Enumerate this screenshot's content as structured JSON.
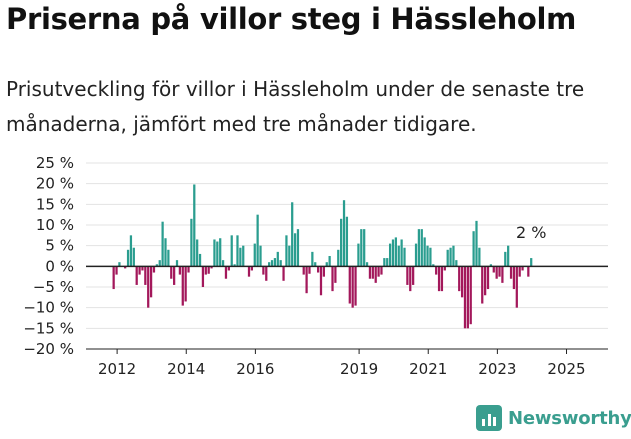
{
  "title": "Priserna på villor steg i Hässleholm",
  "subtitle": "Prisutveckling för villor i Hässleholm under de senaste tre månaderna, jämfört med tre månader tidigare.",
  "brand": {
    "name": "Newsworthy",
    "icon": "newsworthy-logo-icon",
    "color": "#3a9e8f"
  },
  "colors": {
    "positive": "#2a9d8f",
    "negative": "#a3185b",
    "grid": "#e3e3e3",
    "axis": "#222222"
  },
  "chart_data": {
    "type": "bar",
    "ylim": [
      -20,
      25
    ],
    "yticks": [
      -20,
      -15,
      -10,
      -5,
      0,
      5,
      10,
      15,
      20,
      25
    ],
    "ytick_labels": [
      "−20 %",
      "−15 %",
      "−10 %",
      "−5 %",
      "0 %",
      "5 %",
      "10 %",
      "15 %",
      "20 %",
      "25 %"
    ],
    "xticks": [
      {
        "label": "2012",
        "year": 2012
      },
      {
        "label": "2014",
        "year": 2014
      },
      {
        "label": "2016",
        "year": 2016
      },
      {
        "label": "2019",
        "year": 2019
      },
      {
        "label": "2021",
        "year": 2021
      },
      {
        "label": "2023",
        "year": 2023
      },
      {
        "label": "2025",
        "year": 2025
      }
    ],
    "x_start": 2011.9,
    "x_step": 0.0833,
    "values": [
      -5.5,
      -2,
      1,
      0,
      -0.5,
      4,
      7.5,
      4.5,
      -4.5,
      -2,
      -1,
      -4.5,
      -10,
      -7.5,
      -1.5,
      0.5,
      1.5,
      10.8,
      6.8,
      4,
      -3,
      -4.5,
      1.5,
      -2,
      -9.5,
      -8.5,
      -1.5,
      11.5,
      19.8,
      6.5,
      3,
      -5,
      -2,
      -1.8,
      -0.5,
      6.5,
      6,
      6.8,
      1.5,
      -3,
      -1,
      7.5,
      0.5,
      7.5,
      4.5,
      5,
      0,
      -2.5,
      -1,
      5.5,
      12.5,
      5,
      -2,
      -3.5,
      1,
      1.5,
      2,
      3.5,
      1.5,
      -3.5,
      7.5,
      5,
      15.5,
      8,
      9,
      0,
      -2,
      -6.5,
      -1.8,
      3.5,
      1,
      -1.5,
      -7,
      -2.5,
      1,
      2.5,
      -6,
      -4,
      4,
      11.5,
      16,
      12,
      -9,
      -10,
      -9.5,
      5.5,
      9,
      9,
      1,
      -3,
      -3,
      -4,
      -2.5,
      -2,
      2,
      2,
      5.5,
      6.5,
      7,
      5,
      6.5,
      4.5,
      -4.5,
      -6,
      -4.5,
      5.5,
      9,
      9,
      7,
      5,
      4.5,
      0.5,
      -2,
      -6,
      -6,
      -1,
      4,
      4.5,
      5,
      1.5,
      -6,
      -7.5,
      -15,
      -15,
      -14,
      8.5,
      11,
      4.5,
      -9,
      -7,
      -5.5,
      0.5,
      -1.5,
      -3,
      -2.5,
      -4,
      3.5,
      5,
      -3,
      -5.5,
      -10,
      -2.5,
      -1,
      0,
      -2.5,
      2
    ],
    "annotation": {
      "label": "2 %",
      "index": 145
    }
  }
}
